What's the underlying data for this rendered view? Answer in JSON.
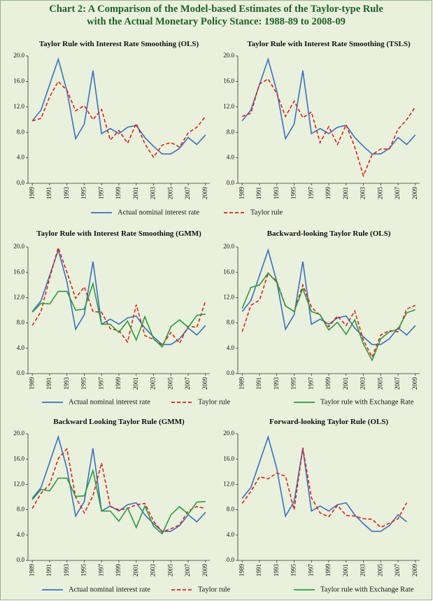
{
  "title": [
    "Chart 2: A Comparison of the Model-based Estimates of the Taylor-type Rule",
    "with the Actual Monetary Policy Stance: 1988-89 to 2008-09"
  ],
  "chart_data": [
    {
      "type": "line",
      "title": "Taylor Rule with Interest Rate Smoothing (OLS)",
      "x": [
        1989,
        1990,
        1991,
        1992,
        1993,
        1994,
        1995,
        1996,
        1997,
        1998,
        1999,
        2000,
        2001,
        2002,
        2003,
        2004,
        2005,
        2006,
        2007,
        2008,
        2009
      ],
      "xlim": [
        1988.5,
        2009.5
      ],
      "xticks": [
        1989,
        1991,
        1993,
        1995,
        1997,
        1999,
        2001,
        2003,
        2005,
        2007,
        2009
      ],
      "ylim": [
        0,
        20
      ],
      "yticks": [
        {
          "value": 0,
          "label": "0.0"
        },
        {
          "value": 4,
          "label": "4.0"
        },
        {
          "value": 8,
          "label": "8.0"
        },
        {
          "value": 12,
          "label": "12.0"
        },
        {
          "value": 16,
          "label": "16.0"
        },
        {
          "value": 20,
          "label": "20.0"
        }
      ],
      "series": [
        {
          "name": "Actual nominal interest rate",
          "color": "#3a6fbf",
          "dashed": false,
          "values": [
            9.8,
            11.5,
            15.5,
            19.5,
            14.5,
            7.0,
            9.3,
            17.7,
            7.8,
            8.6,
            7.8,
            8.8,
            9.1,
            7.2,
            5.8,
            4.6,
            4.6,
            5.5,
            7.2,
            6.1,
            7.6
          ]
        },
        {
          "name": "Taylor rule",
          "color": "#e0201b",
          "dashed": true,
          "values": [
            9.8,
            10.2,
            13.6,
            16.0,
            14.6,
            11.4,
            12.2,
            10.0,
            11.6,
            6.8,
            8.3,
            6.3,
            9.4,
            6.2,
            4.1,
            6.0,
            6.4,
            5.7,
            7.9,
            8.8,
            10.5
          ]
        }
      ]
    },
    {
      "type": "line",
      "title": "Taylor Rule with Interest Rate Smoothing (TSLS)",
      "x": [
        1989,
        1990,
        1991,
        1992,
        1993,
        1994,
        1995,
        1996,
        1997,
        1998,
        1999,
        2000,
        2001,
        2002,
        2003,
        2004,
        2005,
        2006,
        2007,
        2008,
        2009
      ],
      "xlim": [
        1988.5,
        2009.5
      ],
      "xticks": [
        1989,
        1991,
        1993,
        1995,
        1997,
        1999,
        2001,
        2003,
        2005,
        2007,
        2009
      ],
      "ylim": [
        0,
        20
      ],
      "yticks": [
        {
          "value": 0,
          "label": "0.0"
        },
        {
          "value": 4,
          "label": "4.0"
        },
        {
          "value": 8,
          "label": "8.0"
        },
        {
          "value": 12,
          "label": "12.0"
        },
        {
          "value": 16,
          "label": "16.0"
        },
        {
          "value": 20,
          "label": "20.0"
        }
      ],
      "series": [
        {
          "color": "#3a6fbf",
          "dashed": false,
          "values": [
            9.8,
            11.5,
            15.5,
            19.5,
            14.5,
            7.0,
            9.3,
            17.7,
            7.8,
            8.6,
            7.8,
            8.8,
            9.1,
            7.2,
            5.8,
            4.6,
            4.6,
            5.5,
            7.2,
            6.1,
            7.6
          ]
        },
        {
          "color": "#e0201b",
          "dashed": true,
          "values": [
            10.5,
            11.0,
            15.6,
            16.4,
            14.1,
            10.5,
            12.9,
            10.3,
            11.2,
            6.4,
            8.9,
            6.1,
            9.2,
            5.7,
            1.2,
            4.5,
            5.4,
            5.4,
            8.5,
            10.0,
            12.0
          ]
        }
      ]
    },
    {
      "type": "line",
      "title": "Taylor Rule with Interest Rate Smoothing (GMM)",
      "x": [
        1989,
        1990,
        1991,
        1992,
        1993,
        1994,
        1995,
        1996,
        1997,
        1998,
        1999,
        2000,
        2001,
        2002,
        2003,
        2004,
        2005,
        2006,
        2007,
        2008,
        2009
      ],
      "xlim": [
        1988.5,
        2009.5
      ],
      "xticks": [
        1989,
        1991,
        1993,
        1995,
        1997,
        1999,
        2001,
        2003,
        2005,
        2007,
        2009
      ],
      "ylim": [
        0,
        20
      ],
      "yticks": [
        {
          "value": 0,
          "label": "0.0"
        },
        {
          "value": 4,
          "label": "4.0"
        },
        {
          "value": 8,
          "label": "8.0"
        },
        {
          "value": 12,
          "label": "12.0"
        },
        {
          "value": 16,
          "label": "16.0"
        },
        {
          "value": 20,
          "label": "20.0"
        }
      ],
      "series": [
        {
          "name": "Actual nominal interest rate",
          "color": "#3a6fbf",
          "dashed": false,
          "values": [
            9.8,
            11.5,
            15.5,
            19.5,
            14.5,
            7.0,
            9.3,
            17.7,
            7.8,
            8.6,
            7.8,
            8.8,
            9.1,
            7.2,
            5.8,
            4.6,
            4.6,
            5.5,
            7.2,
            6.1,
            7.6
          ]
        },
        {
          "name": "Taylor rule",
          "color": "#e0201b",
          "dashed": true,
          "values": [
            7.6,
            9.8,
            15.1,
            19.9,
            16.0,
            11.9,
            13.7,
            9.8,
            9.7,
            7.1,
            6.8,
            5.0,
            10.9,
            6.0,
            5.4,
            4.5,
            6.5,
            4.8,
            7.5,
            7.3,
            11.5
          ]
        },
        {
          "name": "Taylor rule with Exchange Rate",
          "color": "#2e9a3e",
          "dashed": false,
          "values": [
            9.7,
            11.1,
            11.0,
            13.0,
            13.0,
            10.0,
            10.2,
            14.2,
            7.8,
            7.8,
            6.5,
            8.3,
            5.3,
            9.0,
            5.5,
            4.2,
            7.4,
            8.5,
            7.3,
            9.2,
            9.4
          ]
        }
      ]
    },
    {
      "type": "line",
      "title": "Backward-looking Taylor Rule (OLS)",
      "x": [
        1989,
        1990,
        1991,
        1992,
        1993,
        1994,
        1995,
        1996,
        1997,
        1998,
        1999,
        2000,
        2001,
        2002,
        2003,
        2004,
        2005,
        2006,
        2007,
        2008,
        2009
      ],
      "xlim": [
        1988.5,
        2009.5
      ],
      "xticks": [
        1989,
        1991,
        1993,
        1995,
        1997,
        1999,
        2001,
        2003,
        2005,
        2007,
        2009
      ],
      "ylim": [
        0,
        20
      ],
      "yticks": [
        {
          "value": 0,
          "label": "0.0"
        },
        {
          "value": 4,
          "label": "4.0"
        },
        {
          "value": 8,
          "label": "8.0"
        },
        {
          "value": 12,
          "label": "12.0"
        },
        {
          "value": 16,
          "label": "16.0"
        },
        {
          "value": 20,
          "label": "20.0"
        }
      ],
      "series": [
        {
          "color": "#3a6fbf",
          "dashed": false,
          "values": [
            9.8,
            11.5,
            15.5,
            19.5,
            14.5,
            7.0,
            9.3,
            17.7,
            7.8,
            8.6,
            7.8,
            8.8,
            9.1,
            7.2,
            5.8,
            4.6,
            4.6,
            5.5,
            7.2,
            6.1,
            7.6
          ]
        },
        {
          "color": "#e0201b",
          "dashed": true,
          "values": [
            6.6,
            10.8,
            11.6,
            15.8,
            14.6,
            10.7,
            9.8,
            14.0,
            10.5,
            9.2,
            7.4,
            9.1,
            7.6,
            9.9,
            5.3,
            2.6,
            6.1,
            6.8,
            6.6,
            10.2,
            10.8
          ]
        },
        {
          "color": "#2e9a3e",
          "dashed": false,
          "values": [
            10.3,
            13.6,
            14.0,
            15.9,
            14.4,
            10.7,
            9.8,
            13.4,
            9.8,
            9.3,
            6.9,
            8.1,
            6.2,
            8.5,
            4.7,
            2.1,
            5.5,
            6.6,
            7.0,
            9.6,
            10.1
          ]
        }
      ]
    },
    {
      "type": "line",
      "title": "Backward Looking Taylor Rule (GMM)",
      "x": [
        1989,
        1990,
        1991,
        1992,
        1993,
        1994,
        1995,
        1996,
        1997,
        1998,
        1999,
        2000,
        2001,
        2002,
        2003,
        2004,
        2005,
        2006,
        2007,
        2008,
        2009
      ],
      "xlim": [
        1988.5,
        2009.5
      ],
      "xticks": [
        1989,
        1991,
        1993,
        1995,
        1997,
        1999,
        2001,
        2003,
        2005,
        2007,
        2009
      ],
      "ylim": [
        0,
        20
      ],
      "yticks": [
        {
          "value": 0,
          "label": "0.0"
        },
        {
          "value": 4,
          "label": "4.0"
        },
        {
          "value": 8,
          "label": "8.0"
        },
        {
          "value": 12,
          "label": "12.0"
        },
        {
          "value": 16,
          "label": "16.0"
        },
        {
          "value": 20,
          "label": "20.0"
        }
      ],
      "series": [
        {
          "name": "Actual nominal interest rate",
          "color": "#3a6fbf",
          "dashed": false,
          "values": [
            9.8,
            11.5,
            15.5,
            19.5,
            14.5,
            7.0,
            9.3,
            17.7,
            7.8,
            8.6,
            7.8,
            8.8,
            9.1,
            7.2,
            5.8,
            4.6,
            4.6,
            5.5,
            7.2,
            6.1,
            7.6
          ]
        },
        {
          "name": "Taylor rule",
          "color": "#e0201b",
          "dashed": true,
          "values": [
            8.2,
            10.6,
            12.0,
            16.1,
            17.6,
            10.0,
            7.5,
            10.2,
            15.4,
            8.5,
            8.0,
            8.2,
            8.8,
            9.0,
            6.2,
            4.5,
            5.0,
            5.6,
            7.8,
            8.5,
            8.2
          ]
        },
        {
          "name": "Taylor rule with Exchange Rate",
          "color": "#2e9a3e",
          "dashed": false,
          "values": [
            9.6,
            11.2,
            11.0,
            13.0,
            13.0,
            10.1,
            10.2,
            14.2,
            7.8,
            7.8,
            6.2,
            8.3,
            5.2,
            8.6,
            5.4,
            4.2,
            7.2,
            8.5,
            7.3,
            9.2,
            9.3
          ]
        }
      ]
    },
    {
      "type": "line",
      "title": "Forward-looking Taylor Rule (OLS)",
      "x": [
        1989,
        1990,
        1991,
        1992,
        1993,
        1994,
        1995,
        1996,
        1997,
        1998,
        1999,
        2000,
        2001,
        2002,
        2003,
        2004,
        2005,
        2006,
        2007,
        2008,
        2009
      ],
      "xlim": [
        1988.5,
        2009.5
      ],
      "xticks": [
        1989,
        1991,
        1993,
        1995,
        1997,
        1999,
        2001,
        2003,
        2005,
        2007,
        2009
      ],
      "ylim": [
        0,
        20
      ],
      "yticks": [
        {
          "value": 0,
          "label": "0.0"
        },
        {
          "value": 4,
          "label": "4.0"
        },
        {
          "value": 8,
          "label": "8.0"
        },
        {
          "value": 12,
          "label": "12.0"
        },
        {
          "value": 16,
          "label": "16.0"
        },
        {
          "value": 20,
          "label": "20.0"
        }
      ],
      "series": [
        {
          "color": "#3a6fbf",
          "dashed": false,
          "values": [
            9.8,
            11.5,
            15.5,
            19.5,
            14.5,
            7.0,
            9.3,
            17.7,
            7.8,
            8.6,
            7.8,
            8.8,
            9.1,
            7.2,
            5.8,
            4.6,
            4.6,
            5.5,
            7.2,
            6.1,
            null
          ]
        },
        {
          "color": "#e0201b",
          "dashed": true,
          "values": [
            9.0,
            10.9,
            13.2,
            12.9,
            13.8,
            13.3,
            8.0,
            17.8,
            9.9,
            7.5,
            6.9,
            8.7,
            7.1,
            7.0,
            6.6,
            6.5,
            5.2,
            5.9,
            6.6,
            9.1,
            null
          ]
        }
      ]
    }
  ]
}
